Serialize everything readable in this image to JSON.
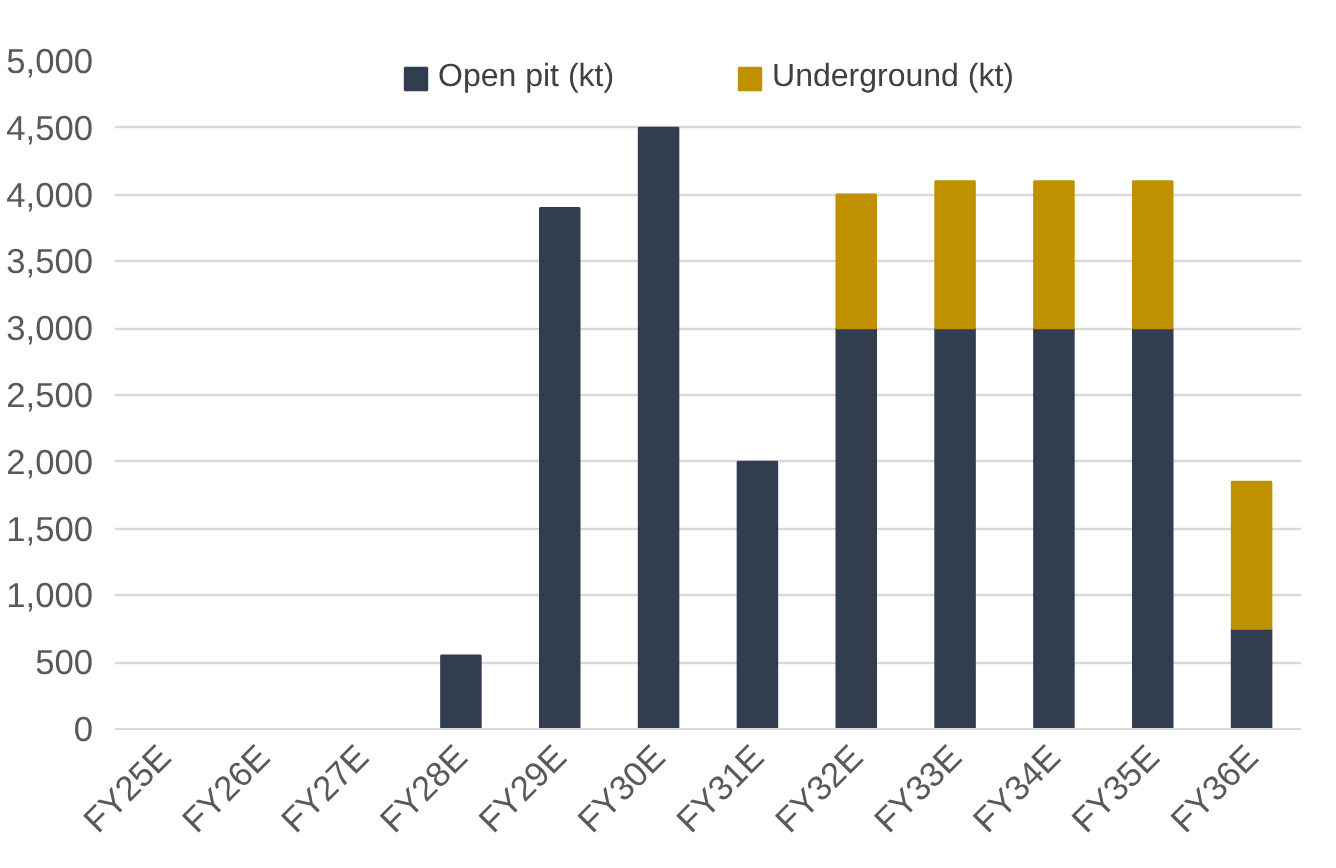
{
  "chart_data": {
    "type": "bar",
    "stacked": true,
    "categories": [
      "FY25E",
      "FY26E",
      "FY27E",
      "FY28E",
      "FY29E",
      "FY30E",
      "FY31E",
      "FY32E",
      "FY33E",
      "FY34E",
      "FY35E",
      "FY36E"
    ],
    "series": [
      {
        "name": "Open pit (kt)",
        "color": "#323e4f",
        "values": [
          null,
          null,
          null,
          550,
          3900,
          4500,
          2000,
          3000,
          3000,
          3000,
          3000,
          750
        ]
      },
      {
        "name": "Underground (kt)",
        "color": "#bf9000",
        "values": [
          null,
          null,
          null,
          null,
          null,
          null,
          null,
          1000,
          1100,
          1100,
          1100,
          1100
        ]
      }
    ],
    "ylim": [
      0,
      5000
    ],
    "yticks": [
      {
        "value": 0,
        "label": "0"
      },
      {
        "value": 500,
        "label": "500"
      },
      {
        "value": 1000,
        "label": "1,000"
      },
      {
        "value": 1500,
        "label": "1,500"
      },
      {
        "value": 2000,
        "label": "2,000"
      },
      {
        "value": 2500,
        "label": "2,500"
      },
      {
        "value": 3000,
        "label": "3,000"
      },
      {
        "value": 3500,
        "label": "3,500"
      },
      {
        "value": 4000,
        "label": "4,000"
      },
      {
        "value": 4500,
        "label": "4,500"
      },
      {
        "value": 5000,
        "label": "5,000"
      }
    ],
    "grid": "y",
    "legend": "top"
  }
}
